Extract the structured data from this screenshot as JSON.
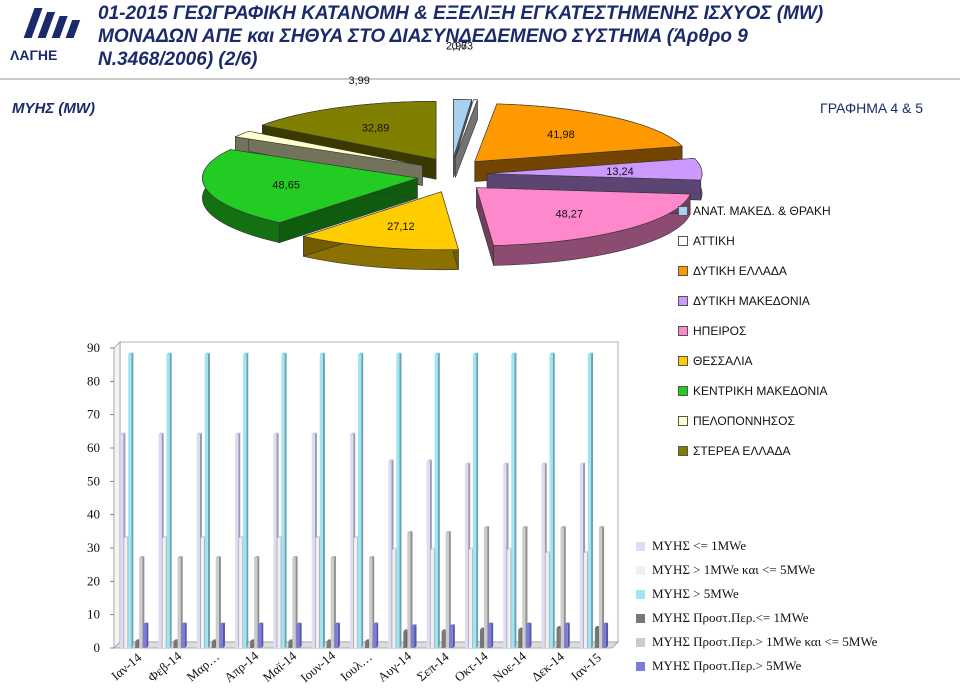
{
  "header": {
    "logo_text": "ΛΑΓΗΕ",
    "title_line1": "01-2015 ΓΕΩΓΡΑΦΙΚΗ ΚΑΤΑΝΟΜΗ & ΕΞΕΛΙΞΗ ΕΓΚΑΤΕΣΤΗΜΕΝΗΣ ΙΣΧΥΟΣ (MW)",
    "title_line2": "ΜΟΝΑΔΩΝ ΑΠΕ και ΣΗΘΥΑ ΣΤΟ ΔΙΑΣΥΝΔΕΔΕΜΕΝΟ ΣΥΣΤΗΜΑ (Άρθρο 9",
    "title_line3": "Ν.3468/2006) (2/6)",
    "brand_color": "#1b2a6b"
  },
  "chart_data": [
    {
      "type": "pie",
      "heading": "ΜΥΗΣ (MW)",
      "figure_label": "ΓΡΑΦΗΜΑ 4 & 5",
      "legend_position": "right",
      "slices": [
        {
          "name": "ΑΝΑΤ. ΜΑΚΕΔ. & ΘΡΑΚΗ",
          "value": 2.97,
          "label": "2,97",
          "color": "#a8d0f0"
        },
        {
          "name": "ΑΤΤΙΚΗ",
          "value": 0.63,
          "label": "0,63",
          "color": "#ffffff"
        },
        {
          "name": "ΔΥΤΙΚΗ ΕΛΛΑΔΑ",
          "value": 41.98,
          "label": "41,98",
          "color": "#ff9900"
        },
        {
          "name": "ΔΥΤΙΚΗ ΜΑΚΕΔΟΝΙΑ",
          "value": 13.24,
          "label": "13,24",
          "color": "#cc99ff"
        },
        {
          "name": "ΗΠΕΙΡΟΣ",
          "value": 48.27,
          "label": "48,27",
          "color": "#ff88cc"
        },
        {
          "name": "ΘΕΣΣΑΛΙΑ",
          "value": 27.12,
          "label": "27,12",
          "color": "#ffcc00"
        },
        {
          "name": "ΚΕΝΤΡΙΚΗ ΜΑΚΕΔΟΝΙΑ",
          "value": 48.65,
          "label": "48,65",
          "color": "#22cc22"
        },
        {
          "name": "ΠΕΛΟΠΟΝΝΗΣΟΣ",
          "value": 3.99,
          "label": "3,99",
          "color": "#ffffcc"
        },
        {
          "name": "ΣΤΕΡΕΑ ΕΛΛΑΔΑ",
          "value": 32.89,
          "label": "32,89",
          "color": "#808000"
        }
      ]
    },
    {
      "type": "bar",
      "legend_position": "right",
      "ylim": [
        0,
        90
      ],
      "yticks": [
        "0",
        "10",
        "20",
        "30",
        "40",
        "50",
        "60",
        "70",
        "80",
        "90"
      ],
      "categories": [
        "Ιαν-14",
        "Φεβ-14",
        "Μαρ…",
        "Απρ-14",
        "Μαϊ-14",
        "Ιουν-14",
        "Ιουλ…",
        "Αυγ-14",
        "Σεπ-14",
        "Οκτ-14",
        "Νοε-14",
        "Δεκ-14",
        "Ιαν-15"
      ],
      "series": [
        {
          "name": "ΜΥΗΣ <= 1MWe",
          "color": "#dcdcf5",
          "values": [
            64,
            64,
            64,
            64,
            64,
            64,
            64,
            56,
            56,
            55,
            55,
            55,
            55
          ]
        },
        {
          "name": "ΜΥΗΣ > 1MWe και <= 5MWe",
          "color": "#f0f0f0",
          "values": [
            33,
            33,
            33,
            33,
            33,
            33,
            33,
            29.5,
            29.5,
            29.5,
            29.5,
            28.5,
            28.5
          ]
        },
        {
          "name": "ΜΥΗΣ > 5MWe",
          "color": "#9ee6f5",
          "values": [
            88,
            88,
            88,
            88,
            88,
            88,
            88,
            88,
            88,
            88,
            88,
            88,
            88
          ]
        },
        {
          "name": "ΜΥΗΣ Προστ.Περ.<= 1MWe",
          "color": "#777777",
          "values": [
            2,
            2,
            2,
            2,
            2,
            2,
            2,
            5,
            5,
            5.5,
            5.5,
            6,
            6
          ]
        },
        {
          "name": "ΜΥΗΣ Προστ.Περ.> 1MWe και <= 5MWe",
          "color": "#cccccc",
          "values": [
            27,
            27,
            27,
            27,
            27,
            27,
            27,
            34.5,
            34.5,
            36,
            36,
            36,
            36
          ]
        },
        {
          "name": "ΜΥΗΣ Προστ.Περ.> 5MWe",
          "color": "#7b7be0",
          "values": [
            7,
            7,
            7,
            7,
            7,
            7,
            7,
            6.5,
            6.5,
            7,
            7,
            7,
            7
          ]
        }
      ]
    }
  ]
}
